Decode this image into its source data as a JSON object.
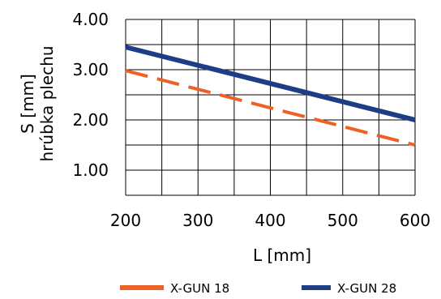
{
  "chart_data": {
    "type": "line",
    "xlabel": "L [mm]",
    "ylabel": [
      "S [mm]",
      "hrúbka plechu"
    ],
    "xlim": [
      200,
      600
    ],
    "ylim": [
      0.5,
      4.0
    ],
    "x_ticks": [
      200,
      300,
      400,
      500,
      600
    ],
    "x_tick_labels": [
      "200",
      "300",
      "400",
      "500",
      "600"
    ],
    "y_ticks": [
      1.0,
      2.0,
      3.0,
      4.0
    ],
    "y_tick_labels": [
      "1.00",
      "2.00",
      "3.00",
      "4.00"
    ],
    "grid": true,
    "legend_position": "bottom",
    "series": [
      {
        "name": "X-GUN 18",
        "color": "#ec6125",
        "line_style": "dashed",
        "x": [
          200,
          600
        ],
        "y": [
          2.98,
          1.5
        ]
      },
      {
        "name": "X-GUN 28",
        "color": "#1f3d87",
        "line_style": "solid",
        "x": [
          200,
          600
        ],
        "y": [
          3.45,
          2.0
        ]
      }
    ]
  }
}
